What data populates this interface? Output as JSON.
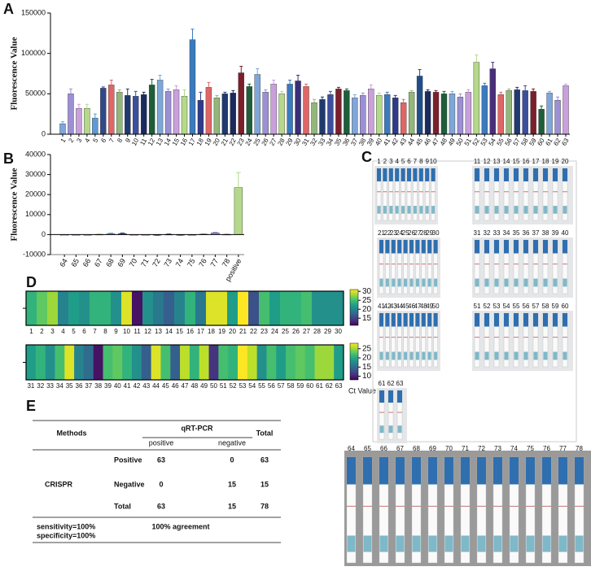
{
  "panel_labels": [
    "A",
    "B",
    "C",
    "D",
    "E"
  ],
  "chart_data": [
    {
      "type": "bar",
      "y_label": "Fluorescence Value",
      "categories": [
        "1",
        "2",
        "3",
        "4",
        "5",
        "6",
        "7",
        "8",
        "9",
        "10",
        "11",
        "12",
        "13",
        "14",
        "15",
        "16",
        "17",
        "18",
        "19",
        "20",
        "21",
        "22",
        "23",
        "24",
        "25",
        "26",
        "27",
        "28",
        "29",
        "30",
        "31",
        "32",
        "33",
        "34",
        "35",
        "36",
        "37",
        "38",
        "39",
        "40",
        "41",
        "42",
        "43",
        "44",
        "45",
        "46",
        "47",
        "48",
        "49",
        "50",
        "51",
        "52",
        "53",
        "54",
        "55",
        "56",
        "57",
        "58",
        "59",
        "60",
        "61",
        "62",
        "63"
      ],
      "values": [
        13000,
        50000,
        32000,
        32000,
        20000,
        57000,
        61000,
        52000,
        48000,
        47000,
        49000,
        61000,
        67000,
        53000,
        55000,
        47000,
        117000,
        42000,
        58000,
        45000,
        50000,
        51000,
        76000,
        59000,
        74000,
        52000,
        62000,
        50000,
        62000,
        66000,
        59000,
        39000,
        43000,
        49000,
        56000,
        54000,
        45000,
        48000,
        56000,
        48000,
        49000,
        45000,
        39000,
        52000,
        72000,
        53000,
        52000,
        50000,
        50000,
        46000,
        52000,
        89000,
        60000,
        81000,
        49000,
        54000,
        55000,
        54000,
        53000,
        31000,
        51000,
        42000,
        60000
      ],
      "errors": [
        2500,
        6000,
        5000,
        5000,
        5000,
        1500,
        6000,
        3000,
        8000,
        6000,
        3000,
        7000,
        6000,
        3000,
        5000,
        8000,
        13000,
        10000,
        6000,
        3000,
        2000,
        3000,
        8000,
        3000,
        7000,
        3000,
        5000,
        3000,
        5000,
        7000,
        3000,
        4000,
        3000,
        4000,
        2000,
        2000,
        4000,
        3000,
        5000,
        3000,
        3000,
        3000,
        4000,
        2000,
        8000,
        2000,
        2000,
        3000,
        3000,
        4000,
        3000,
        9000,
        3000,
        8000,
        3000,
        2000,
        3000,
        6000,
        3000,
        4000,
        2000,
        4000,
        2000
      ],
      "colors": [
        "#7ea6d8",
        "#9d8fd6",
        "#c9a0dc",
        "#b5d98a",
        "#5b9bd5",
        "#2e4a8a",
        "#e06666",
        "#93b77a",
        "#1f3a6e",
        "#3c4f9e",
        "#1b2a5e",
        "#1e5e3a",
        "#7ea6d8",
        "#9d8fd6",
        "#c9a0dc",
        "#b5d98a",
        "#3a7bbf",
        "#2e3a8a",
        "#e06666",
        "#93b77a",
        "#1f3a6e",
        "#1b2a5e",
        "#7a1f2b",
        "#1e5e3a",
        "#7ea6d8",
        "#9d8fd6",
        "#c9a0dc",
        "#b5d98a",
        "#3a7bbf",
        "#3a2e7a",
        "#e06666",
        "#93b77a",
        "#1f3a6e",
        "#3c4f9e",
        "#7a1f2b",
        "#1e5e3a",
        "#7ea6d8",
        "#9d8fd6",
        "#c9a0dc",
        "#b5d98a",
        "#3a7bbf",
        "#2e3a8a",
        "#e06666",
        "#93b77a",
        "#1f4e8a",
        "#1b2a5e",
        "#7a1f2b",
        "#1e5e3a",
        "#7ea6d8",
        "#9d8fd6",
        "#c9a0dc",
        "#b5d98a",
        "#3a7bbf",
        "#4a2e7a",
        "#e06666",
        "#93b77a",
        "#1f3a6e",
        "#3c4f9e",
        "#7a1f2b",
        "#1e5e3a",
        "#7ea6d8",
        "#9d8fd6",
        "#c9a0dc"
      ],
      "ylim": [
        0,
        150000
      ],
      "yticks": [
        0,
        50000,
        100000,
        150000
      ]
    },
    {
      "type": "bar",
      "y_label": "Fluorescence Value",
      "categories": [
        "64",
        "65",
        "66",
        "67",
        "68",
        "69",
        "70",
        "71",
        "72",
        "73",
        "74",
        "75",
        "76",
        "77",
        "78",
        "positive"
      ],
      "values": [
        -100,
        -150,
        -200,
        100,
        400,
        500,
        -100,
        -200,
        -150,
        100,
        -100,
        -50,
        200,
        900,
        100,
        23500
      ],
      "errors": [
        200,
        200,
        300,
        200,
        300,
        300,
        200,
        200,
        200,
        200,
        200,
        200,
        200,
        300,
        200,
        7500
      ],
      "colors": [
        "#7ea6d8",
        "#9d8fd6",
        "#c9a0dc",
        "#b5d98a",
        "#5b9bd5",
        "#2e4a8a",
        "#e06666",
        "#93b77a",
        "#1f3a6e",
        "#3c4f9e",
        "#1b2a5e",
        "#1e5e3a",
        "#7ea6d8",
        "#9d8fd6",
        "#c9a0dc",
        "#b5d98a"
      ],
      "ylim": [
        -10000,
        40000
      ],
      "yticks": [
        -10000,
        0,
        10000,
        20000,
        30000,
        40000
      ]
    },
    {
      "type": "heatmap",
      "colormap": "viridis",
      "categories": [
        "1",
        "2",
        "3",
        "4",
        "5",
        "6",
        "7",
        "8",
        "9",
        "10",
        "11",
        "12",
        "13",
        "14",
        "15",
        "16",
        "17",
        "18",
        "19",
        "20",
        "21",
        "22",
        "23",
        "24",
        "25",
        "26",
        "27",
        "28",
        "29",
        "30"
      ],
      "values": [
        24,
        26,
        28,
        20,
        22,
        21,
        24,
        24,
        21,
        30,
        12,
        21,
        19,
        17,
        20,
        24,
        19,
        30,
        30,
        22,
        31,
        16,
        25,
        22,
        24,
        24,
        25,
        21,
        21,
        21
      ],
      "zlim": [
        11,
        31
      ],
      "zticks": [
        15,
        20,
        25,
        30
      ]
    },
    {
      "type": "heatmap",
      "colormap": "viridis",
      "zlabel": "Ct Value",
      "categories": [
        "31",
        "32",
        "33",
        "34",
        "35",
        "36",
        "37",
        "38",
        "39",
        "40",
        "41",
        "42",
        "43",
        "44",
        "45",
        "46",
        "47",
        "48",
        "49",
        "50",
        "51",
        "52",
        "53",
        "54",
        "55",
        "56",
        "57",
        "58",
        "59",
        "60",
        "61",
        "62",
        "63"
      ],
      "values": [
        19,
        21,
        18,
        22,
        27,
        17,
        15,
        9,
        22,
        23,
        21,
        18,
        14,
        27,
        22,
        14,
        26,
        21,
        26,
        11,
        22,
        21,
        28,
        26,
        18,
        22,
        19,
        22,
        23,
        22,
        25,
        25,
        19
      ],
      "zlim": [
        8,
        28
      ],
      "zticks": [
        10,
        15,
        20,
        25
      ]
    }
  ],
  "strips": {
    "groups": [
      [
        "1",
        "2",
        "3",
        "4",
        "5",
        "6",
        "7",
        "8",
        "9",
        "10"
      ],
      [
        "11",
        "12",
        "13",
        "14",
        "15",
        "16",
        "17",
        "18",
        "19",
        "20"
      ],
      [
        "21",
        "22",
        "23",
        "24",
        "25",
        "26",
        "27",
        "28",
        "29",
        "30"
      ],
      [
        "31",
        "32",
        "33",
        "34",
        "35",
        "36",
        "37",
        "38",
        "39",
        "40"
      ],
      [
        "41",
        "42",
        "43",
        "44",
        "45",
        "46",
        "47",
        "48",
        "49",
        "50"
      ],
      [
        "51",
        "52",
        "53",
        "54",
        "55",
        "56",
        "57",
        "58",
        "59",
        "60"
      ],
      [
        "61",
        "62",
        "63"
      ],
      [
        "64",
        "65",
        "66",
        "67",
        "68",
        "69",
        "70",
        "71",
        "72",
        "73",
        "74",
        "75",
        "76",
        "77",
        "78"
      ]
    ]
  },
  "table": {
    "header": [
      "Methods",
      "qRT-PCR",
      "Total"
    ],
    "subheader": [
      "positive",
      "negative"
    ],
    "row_group": "CRISPR",
    "rows": [
      [
        "Positive",
        63,
        0,
        63
      ],
      [
        "Negative",
        0,
        15,
        15
      ],
      [
        "Total",
        63,
        15,
        78
      ]
    ],
    "footer": [
      "sensitivity=100%",
      "specificity=100%",
      "100% agreement"
    ]
  }
}
